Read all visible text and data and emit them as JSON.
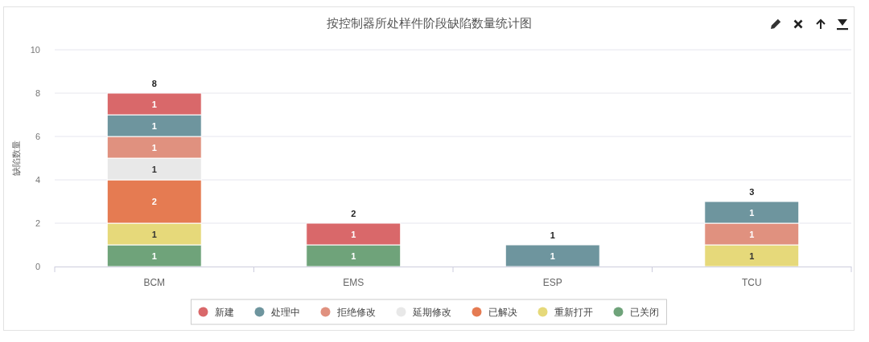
{
  "chart_data": {
    "type": "bar",
    "title": "按控制器所处样件阶段缺陷数量统计图",
    "ylabel": "缺陷数量",
    "categories": [
      "BCM",
      "EMS",
      "ESP",
      "TCU"
    ],
    "stacked": true,
    "series": [
      {
        "name": "已关闭",
        "color": "#6fa37a",
        "values": [
          1,
          1,
          null,
          null
        ]
      },
      {
        "name": "重新打开",
        "color": "#e6d97a",
        "values": [
          1,
          null,
          null,
          1
        ]
      },
      {
        "name": "已解决",
        "color": "#e57b52",
        "values": [
          2,
          null,
          null,
          null
        ]
      },
      {
        "name": "延期修改",
        "color": "#e8e8e8",
        "values": [
          1,
          null,
          null,
          null
        ]
      },
      {
        "name": "拒绝修改",
        "color": "#e0917f",
        "values": [
          1,
          null,
          null,
          1
        ]
      },
      {
        "name": "处理中",
        "color": "#6e959e",
        "values": [
          1,
          null,
          1,
          1
        ]
      },
      {
        "name": "新建",
        "color": "#d9686a",
        "values": [
          1,
          1,
          null,
          null
        ]
      }
    ],
    "ylim": [
      0,
      10
    ],
    "yticks": [
      0,
      2,
      4,
      6,
      8,
      10
    ],
    "grid": "y",
    "legend": "bottom",
    "data_labels": true,
    "totals": [
      "8",
      "2",
      "1",
      "3"
    ]
  }
}
